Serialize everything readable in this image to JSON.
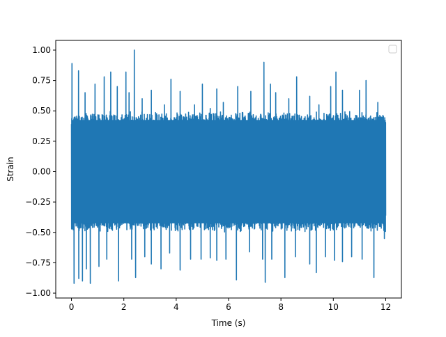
{
  "chart_data": {
    "type": "line",
    "title": "",
    "xlabel": "Time (s)",
    "ylabel": "Strain",
    "xlim": [
      -0.6,
      12.6
    ],
    "ylim": [
      -1.04,
      1.08
    ],
    "x_ticks": [
      0,
      2,
      4,
      6,
      8,
      10,
      12
    ],
    "x_tick_labels": [
      "0",
      "2",
      "4",
      "6",
      "8",
      "10",
      "12"
    ],
    "y_ticks": [
      -1.0,
      -0.75,
      -0.5,
      -0.25,
      0.0,
      0.25,
      0.5,
      0.75,
      1.0
    ],
    "y_tick_labels": [
      "−1.00",
      "−0.75",
      "−0.50",
      "−0.25",
      "0.00",
      "0.25",
      "0.50",
      "0.75",
      "1.00"
    ],
    "grid": false,
    "legend": {
      "placement": "upper-right",
      "entries": []
    },
    "series": [
      {
        "color": "#1f77b4",
        "x_start": 0.0,
        "x_end": 12.0,
        "band_upper": 0.5,
        "band_lower": -0.5,
        "peaks": [
          [
            0.02,
            0.89
          ],
          [
            0.27,
            0.83
          ],
          [
            0.52,
            0.65
          ],
          [
            0.9,
            0.72
          ],
          [
            1.25,
            0.78
          ],
          [
            1.5,
            0.82
          ],
          [
            1.75,
            0.7
          ],
          [
            2.08,
            0.82
          ],
          [
            2.2,
            0.65
          ],
          [
            2.4,
            1.0
          ],
          [
            2.7,
            0.6
          ],
          [
            3.05,
            0.67
          ],
          [
            3.55,
            0.55
          ],
          [
            3.8,
            0.76
          ],
          [
            4.15,
            0.66
          ],
          [
            4.7,
            0.55
          ],
          [
            5.0,
            0.72
          ],
          [
            5.3,
            0.52
          ],
          [
            5.55,
            0.68
          ],
          [
            5.8,
            0.57
          ],
          [
            6.35,
            0.7
          ],
          [
            6.85,
            0.66
          ],
          [
            7.35,
            0.9
          ],
          [
            7.6,
            0.72
          ],
          [
            7.8,
            0.65
          ],
          [
            8.3,
            0.6
          ],
          [
            8.6,
            0.78
          ],
          [
            9.1,
            0.62
          ],
          [
            9.45,
            0.55
          ],
          [
            9.9,
            0.7
          ],
          [
            10.1,
            0.82
          ],
          [
            10.35,
            0.67
          ],
          [
            11.0,
            0.67
          ],
          [
            11.25,
            0.75
          ],
          [
            11.7,
            0.57
          ]
        ],
        "troughs": [
          [
            0.1,
            -0.92
          ],
          [
            0.28,
            -0.88
          ],
          [
            0.42,
            -0.9
          ],
          [
            0.57,
            -0.8
          ],
          [
            0.72,
            -0.92
          ],
          [
            1.05,
            -0.78
          ],
          [
            1.35,
            -0.72
          ],
          [
            1.8,
            -0.9
          ],
          [
            2.3,
            -0.72
          ],
          [
            2.45,
            -0.87
          ],
          [
            2.8,
            -0.7
          ],
          [
            3.05,
            -0.76
          ],
          [
            3.42,
            -0.8
          ],
          [
            3.75,
            -0.67
          ],
          [
            4.15,
            -0.81
          ],
          [
            4.55,
            -0.72
          ],
          [
            4.95,
            -0.72
          ],
          [
            5.3,
            -0.71
          ],
          [
            5.55,
            -0.73
          ],
          [
            5.9,
            -0.72
          ],
          [
            6.3,
            -0.89
          ],
          [
            6.8,
            -0.66
          ],
          [
            7.3,
            -0.72
          ],
          [
            7.4,
            -0.91
          ],
          [
            7.65,
            -0.72
          ],
          [
            8.15,
            -0.87
          ],
          [
            8.55,
            -0.7
          ],
          [
            9.1,
            -0.76
          ],
          [
            9.35,
            -0.83
          ],
          [
            9.7,
            -0.7
          ],
          [
            10.05,
            -0.73
          ],
          [
            10.35,
            -0.74
          ],
          [
            10.7,
            -0.7
          ],
          [
            11.1,
            -0.72
          ],
          [
            11.55,
            -0.87
          ],
          [
            11.95,
            -0.55
          ]
        ]
      }
    ]
  }
}
